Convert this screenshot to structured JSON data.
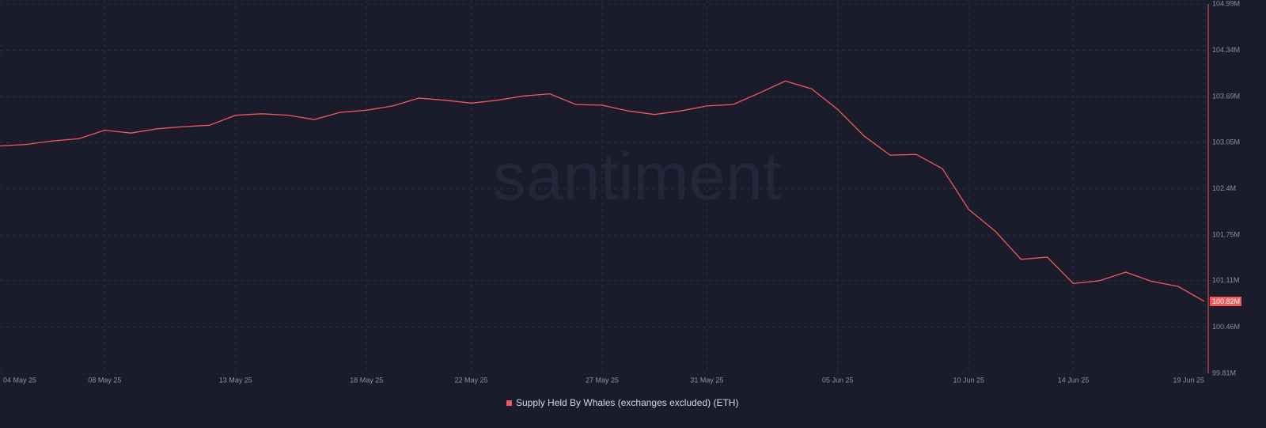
{
  "chart_data": {
    "type": "line",
    "watermark": "santiment",
    "background": "#1a1c2c",
    "grid": true,
    "x": [
      "2025-05-04",
      "2025-05-05",
      "2025-05-06",
      "2025-05-07",
      "2025-05-08",
      "2025-05-09",
      "2025-05-10",
      "2025-05-11",
      "2025-05-12",
      "2025-05-13",
      "2025-05-14",
      "2025-05-15",
      "2025-05-16",
      "2025-05-17",
      "2025-05-18",
      "2025-05-19",
      "2025-05-20",
      "2025-05-21",
      "2025-05-22",
      "2025-05-23",
      "2025-05-24",
      "2025-05-25",
      "2025-05-26",
      "2025-05-27",
      "2025-05-28",
      "2025-05-29",
      "2025-05-30",
      "2025-05-31",
      "2025-06-01",
      "2025-06-02",
      "2025-06-03",
      "2025-06-04",
      "2025-06-05",
      "2025-06-06",
      "2025-06-07",
      "2025-06-08",
      "2025-06-09",
      "2025-06-10",
      "2025-06-11",
      "2025-06-12",
      "2025-06-13",
      "2025-06-14",
      "2025-06-15",
      "2025-06-16",
      "2025-06-17",
      "2025-06-18",
      "2025-06-19"
    ],
    "series": [
      {
        "name": "Supply Held By Whales (exchanges excluded) (ETH)",
        "color": "#f0595c",
        "values": [
          103.0,
          103.02,
          103.07,
          103.1,
          103.22,
          103.18,
          103.24,
          103.27,
          103.29,
          103.43,
          103.45,
          103.43,
          103.37,
          103.47,
          103.5,
          103.56,
          103.67,
          103.64,
          103.6,
          103.64,
          103.7,
          103.73,
          103.58,
          103.57,
          103.49,
          103.44,
          103.49,
          103.56,
          103.58,
          103.74,
          103.91,
          103.8,
          103.51,
          103.14,
          102.87,
          102.88,
          102.68,
          102.11,
          101.81,
          101.41,
          101.44,
          101.07,
          101.11,
          101.23,
          101.1,
          101.03,
          100.82
        ],
        "value_labels": [
          null,
          null,
          null,
          null,
          null,
          null,
          null,
          null,
          null,
          null,
          null,
          null,
          null,
          null,
          null,
          null,
          null,
          null,
          null,
          null,
          null,
          null,
          null,
          null,
          null,
          null,
          null,
          null,
          null,
          null,
          null,
          null,
          null,
          null,
          null,
          null,
          null,
          null,
          null,
          null,
          null,
          null,
          null,
          null,
          null,
          null,
          "100.82M"
        ]
      }
    ],
    "xlim": [
      "2025-05-04",
      "2025-06-19"
    ],
    "xticks": [
      {
        "value": "2025-05-04",
        "label": "04 May 25"
      },
      {
        "value": "2025-05-08",
        "label": "08 May 25"
      },
      {
        "value": "2025-05-13",
        "label": "13 May 25"
      },
      {
        "value": "2025-05-18",
        "label": "18 May 25"
      },
      {
        "value": "2025-05-22",
        "label": "22 May 25"
      },
      {
        "value": "2025-05-27",
        "label": "27 May 25"
      },
      {
        "value": "2025-05-31",
        "label": "31 May 25"
      },
      {
        "value": "2025-06-05",
        "label": "05 Jun 25"
      },
      {
        "value": "2025-06-10",
        "label": "10 Jun 25"
      },
      {
        "value": "2025-06-14",
        "label": "14 Jun 25"
      },
      {
        "value": "2025-06-19",
        "label": "19 Jun 25"
      }
    ],
    "ylim": [
      99.81,
      104.99
    ],
    "yticks": [
      {
        "value": 99.81,
        "label": "99.81M"
      },
      {
        "value": 100.46,
        "label": "100.46M"
      },
      {
        "value": 101.11,
        "label": "101.11M"
      },
      {
        "value": 101.75,
        "label": "101.75M"
      },
      {
        "value": 102.4,
        "label": "102.4M"
      },
      {
        "value": 103.05,
        "label": "103.05M"
      },
      {
        "value": 103.69,
        "label": "103.69M"
      },
      {
        "value": 104.34,
        "label": "104.34M"
      },
      {
        "value": 104.99,
        "label": "104.99M"
      }
    ]
  }
}
